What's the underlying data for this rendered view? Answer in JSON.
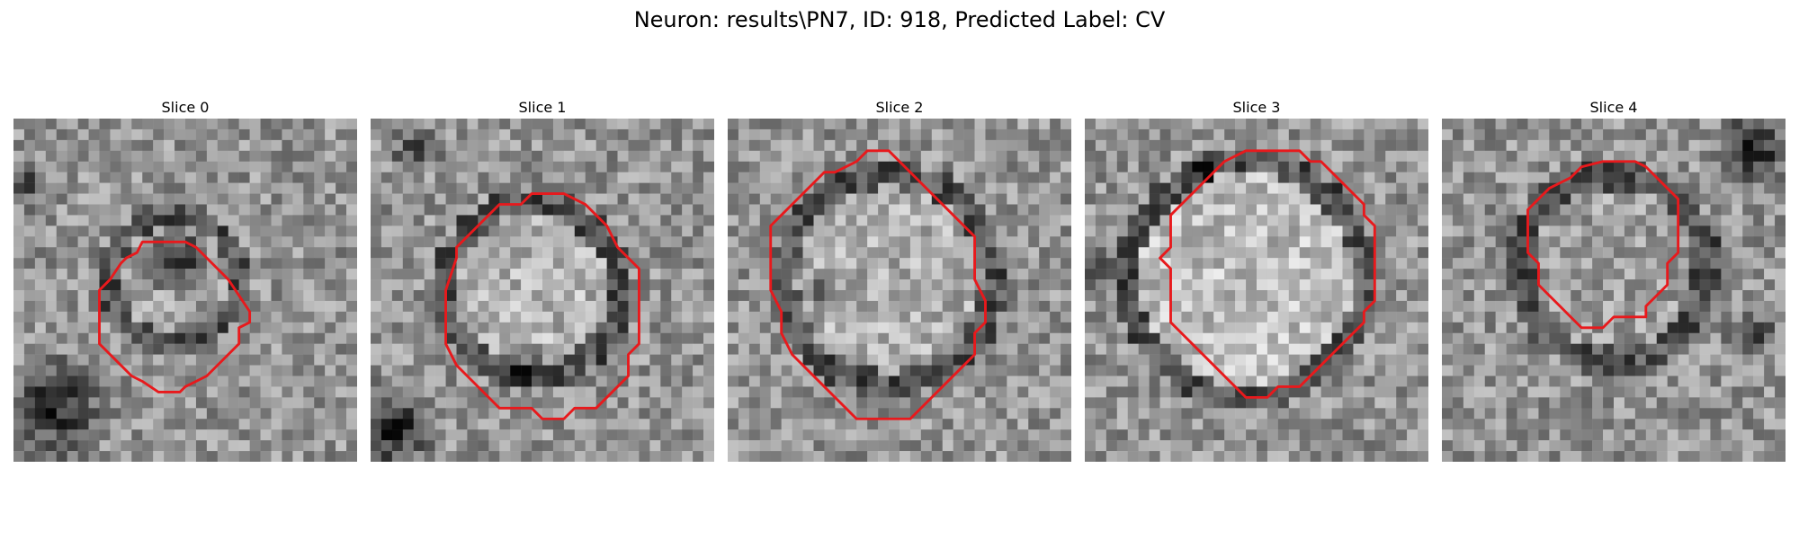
{
  "figure": {
    "title": "Neuron: results\\PN7, ID: 918, Predicted Label: CV",
    "contour_color": "#e8191c"
  },
  "panels": [
    {
      "title": "Slice 0"
    },
    {
      "title": "Slice 1"
    },
    {
      "title": "Slice 2"
    },
    {
      "title": "Slice 3"
    },
    {
      "title": "Slice 4"
    }
  ]
}
